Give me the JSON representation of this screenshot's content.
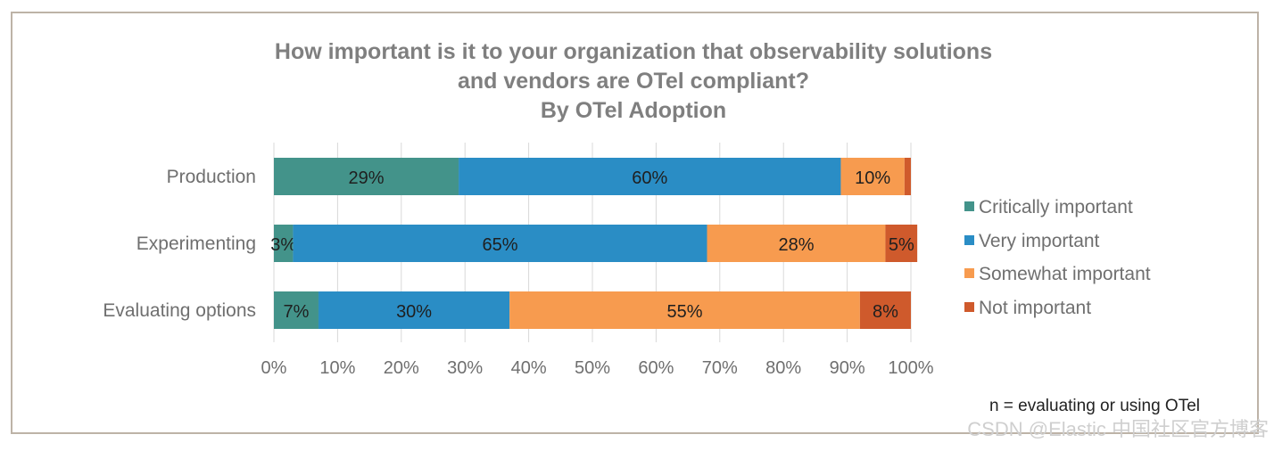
{
  "chart_data": {
    "type": "bar",
    "orientation": "horizontal",
    "stacked": true,
    "title_lines": [
      "How important is it to your organization that observability solutions",
      "and vendors are OTel compliant?",
      "By OTel Adoption"
    ],
    "categories": [
      "Production",
      "Experimenting",
      "Evaluating options"
    ],
    "series": [
      {
        "name": "Critically important",
        "color": "#43938a",
        "values": [
          29,
          3,
          7
        ],
        "labels": [
          "29%",
          "3%",
          "7%"
        ]
      },
      {
        "name": "Very important",
        "color": "#2a8dc5",
        "values": [
          60,
          65,
          30
        ],
        "labels": [
          "60%",
          "65%",
          "30%"
        ]
      },
      {
        "name": "Somewhat important",
        "color": "#f79b4f",
        "values": [
          10,
          28,
          55
        ],
        "labels": [
          "10%",
          "28%",
          "55%"
        ]
      },
      {
        "name": "Not important",
        "color": "#cf5a2c",
        "values": [
          1,
          5,
          8
        ],
        "labels": [
          "",
          "5%",
          "8%"
        ]
      }
    ],
    "xlim": [
      0,
      100
    ],
    "xticks": [
      "0%",
      "10%",
      "20%",
      "30%",
      "40%",
      "50%",
      "60%",
      "70%",
      "80%",
      "90%",
      "100%"
    ],
    "grid": true,
    "legend_position": "right",
    "note": "n = evaluating or using OTel"
  },
  "watermark": "CSDN @Elastic 中国社区官方博客"
}
